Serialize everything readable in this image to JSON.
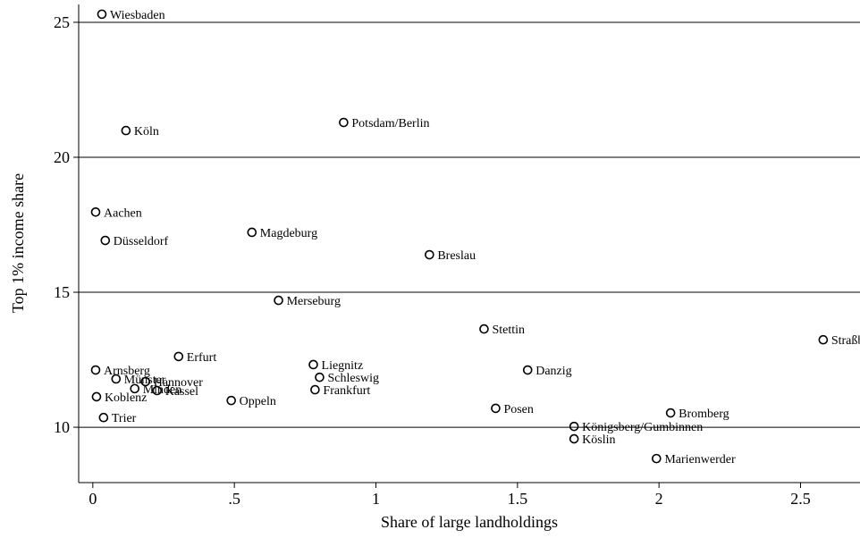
{
  "chart_data": {
    "type": "scatter",
    "xlabel": "Share of large landholdings",
    "ylabel": "Top 1% income share",
    "labels": [
      "Wiesbaden",
      "Köln",
      "Potsdam/Berlin",
      "Aachen",
      "Düsseldorf",
      "Magdeburg",
      "Breslau",
      "Merseburg",
      "Stettin",
      "Straßburg",
      "Erfurt",
      "Liegnitz",
      "Arnsberg",
      "Danzig",
      "Schleswig",
      "Münster",
      "Hannover",
      "Minden",
      "Kassel",
      "Frankfurt",
      "Koblenz",
      "Oppeln",
      "Posen",
      "Bromberg",
      "Trier",
      "Königsberg/Gumbinnen",
      "Köslin",
      "Marienwerder"
    ],
    "x": [
      0.032,
      0.117,
      0.886,
      0.01,
      0.044,
      0.562,
      1.189,
      0.656,
      1.382,
      2.58,
      0.303,
      0.779,
      0.01,
      1.536,
      0.801,
      0.082,
      0.186,
      0.148,
      0.227,
      0.785,
      0.013,
      0.489,
      1.423,
      2.041,
      0.038,
      1.7,
      1.7,
      1.991
    ],
    "y": [
      25.3,
      20.99,
      21.29,
      17.97,
      16.92,
      17.22,
      16.39,
      14.7,
      13.64,
      13.24,
      12.62,
      12.32,
      12.12,
      12.12,
      11.85,
      11.79,
      11.69,
      11.43,
      11.36,
      11.39,
      11.13,
      10.99,
      10.7,
      10.53,
      10.36,
      10.03,
      9.57,
      8.84
    ],
    "color": "#000000",
    "xlim": [
      -0.05,
      2.71
    ],
    "ylim": [
      7.95,
      25.66
    ],
    "xticks": [
      0,
      {
        "value": 0.5,
        "label": ".5"
      },
      1,
      1.5,
      2,
      2.5
    ],
    "yticks": [
      10,
      15,
      20,
      25
    ],
    "grid": true
  }
}
